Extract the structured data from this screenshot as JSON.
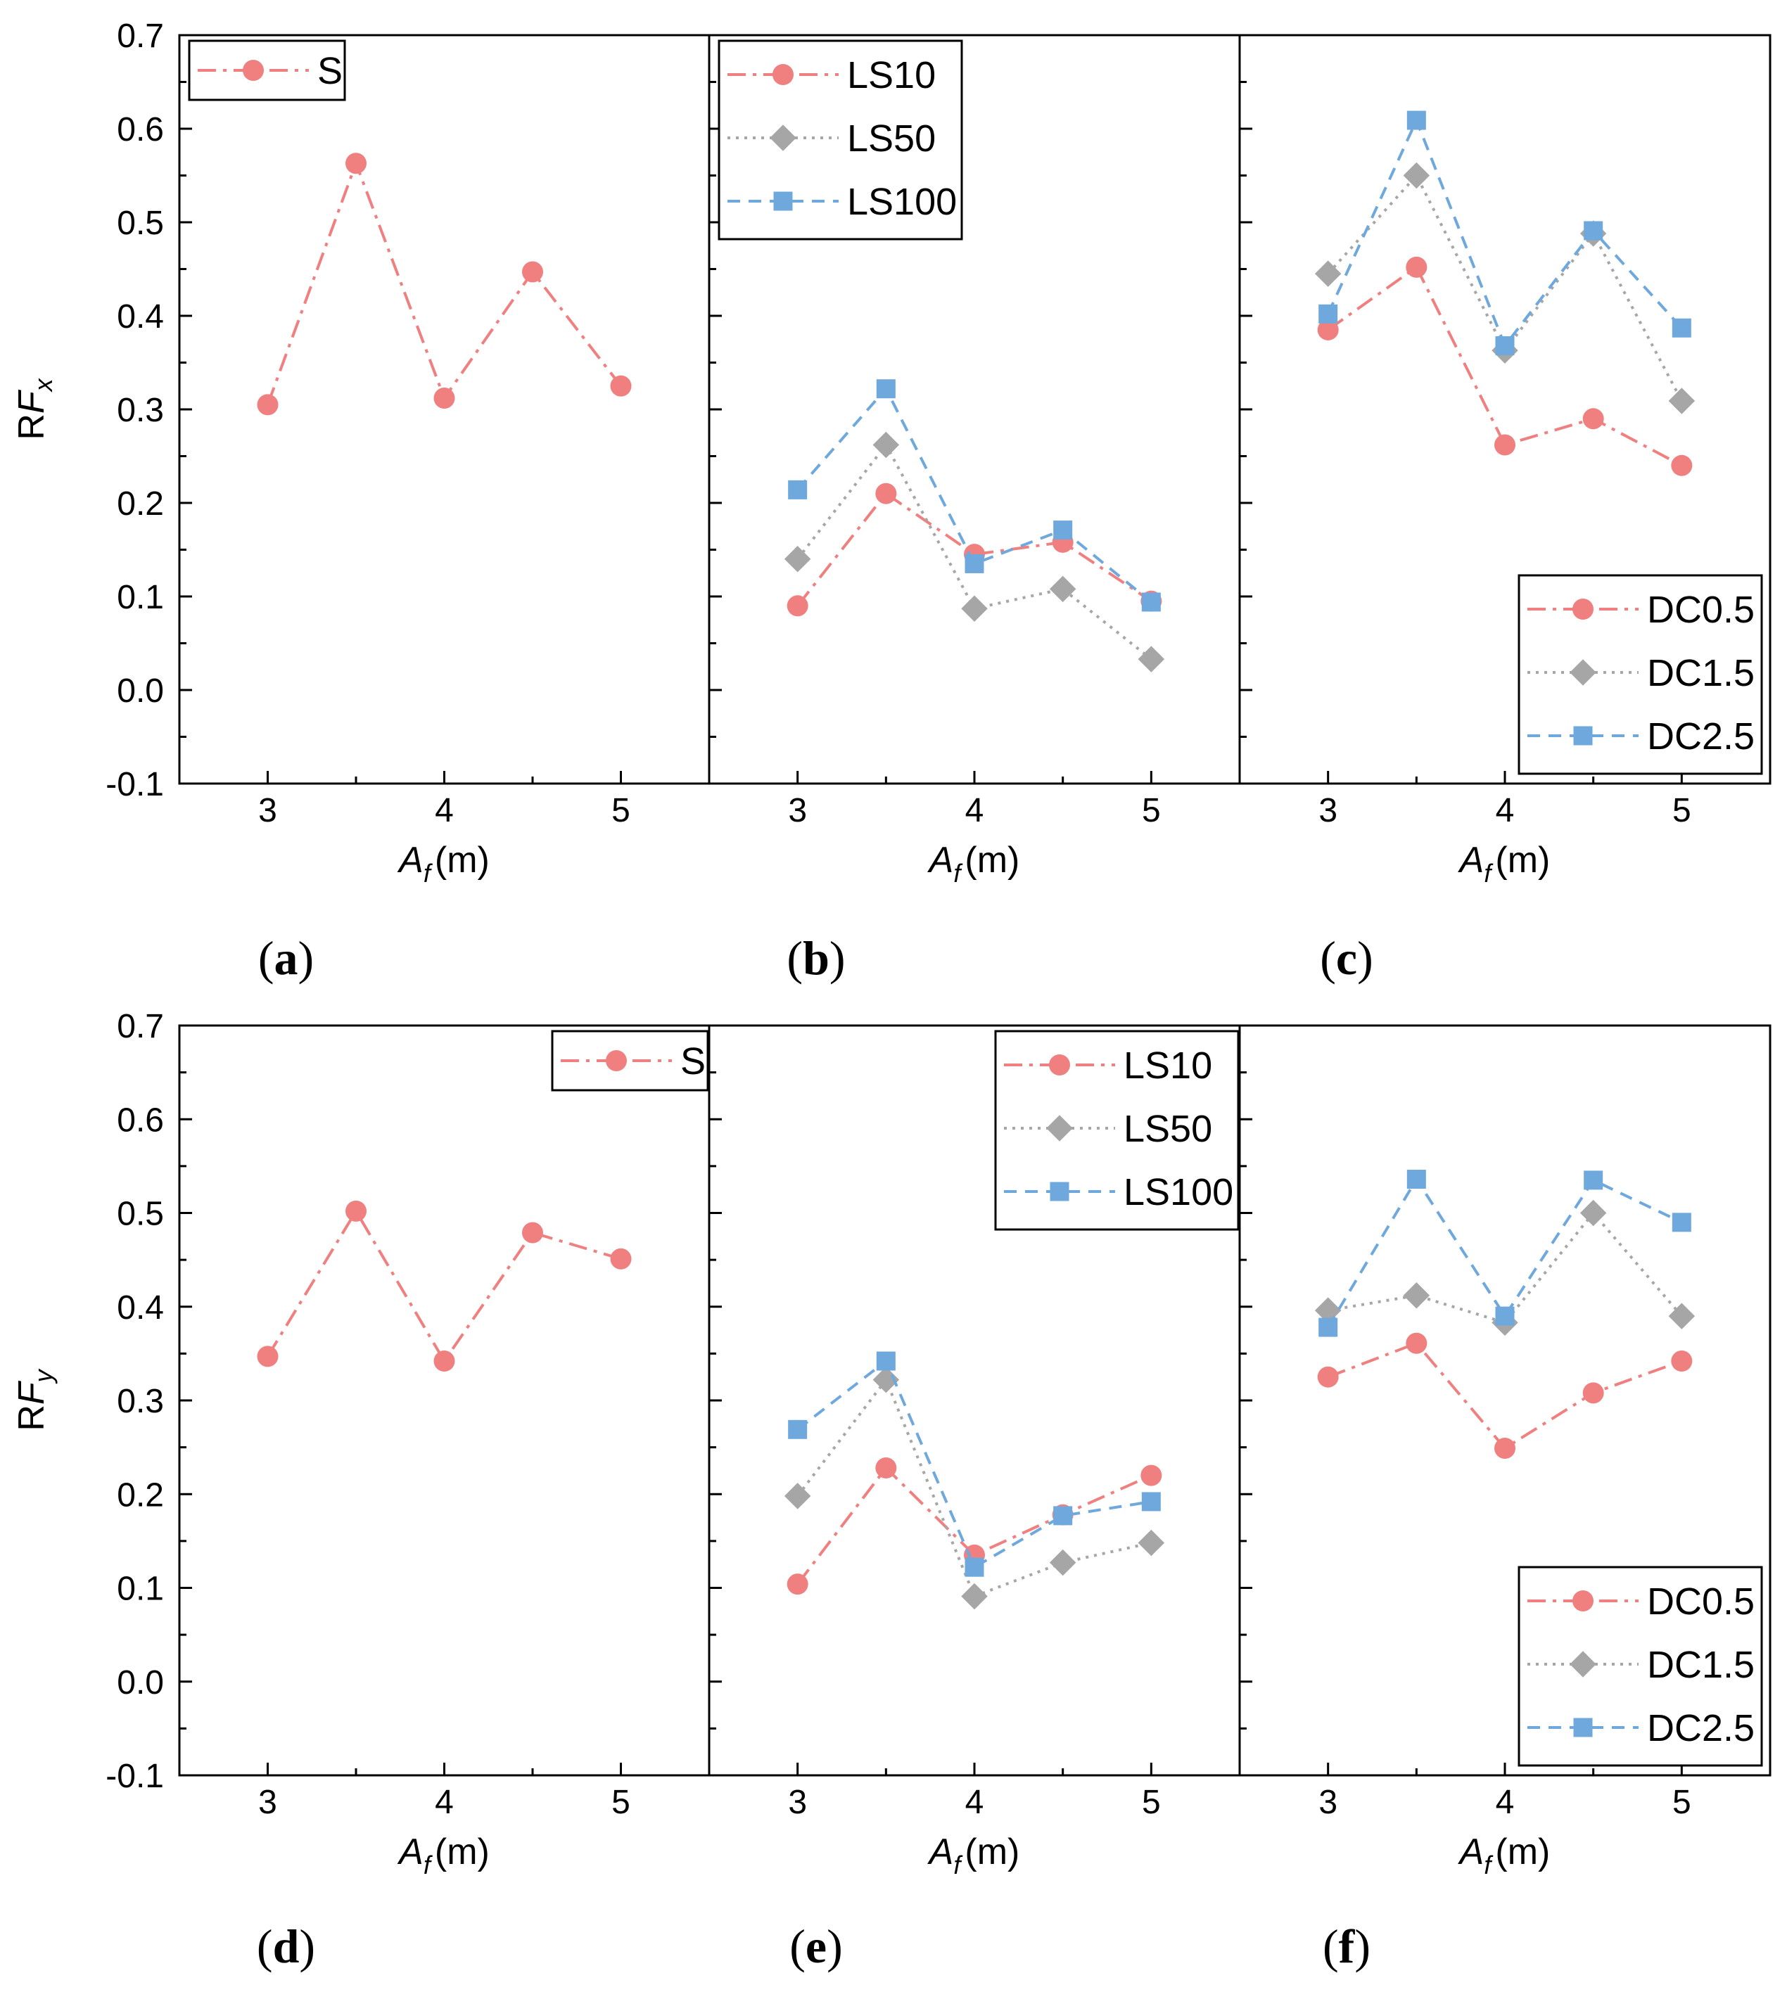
{
  "colors": {
    "red": "#f08080",
    "gray": "#a6a6a6",
    "blue": "#6fa8dc",
    "axis": "#000000"
  },
  "chart_data": [
    {
      "type": "line",
      "panel_label": "a",
      "xlabel_var": "A",
      "xlabel_sub": "f",
      "xlabel_unit": "(m)",
      "ylabel_main": "RF",
      "ylabel_sub": "x",
      "ylim": [
        -0.1,
        0.7
      ],
      "yticks": [
        "-0.1",
        "0.0",
        "0.1",
        "0.2",
        "0.3",
        "0.4",
        "0.5",
        "0.6",
        "0.7"
      ],
      "xticks": [
        "3",
        "4",
        "5"
      ],
      "legend_position": "top-left",
      "x": [
        3,
        3.5,
        4,
        4.5,
        5
      ],
      "series": [
        {
          "name": "S",
          "style": "dashdot",
          "marker": "circle",
          "color": "red",
          "values": [
            0.305,
            0.563,
            0.312,
            0.447,
            0.325
          ]
        }
      ]
    },
    {
      "type": "line",
      "panel_label": "b",
      "xlabel_var": "A",
      "xlabel_sub": "f",
      "xlabel_unit": "(m)",
      "xticks": [
        "3",
        "4",
        "5"
      ],
      "legend_position": "top-left",
      "x": [
        3,
        3.5,
        4,
        4.5,
        5
      ],
      "series": [
        {
          "name": "LS10",
          "style": "dashdot",
          "marker": "circle",
          "color": "red",
          "values": [
            0.09,
            0.21,
            0.145,
            0.158,
            0.095
          ]
        },
        {
          "name": "LS50",
          "style": "dotted",
          "marker": "diamond",
          "color": "gray",
          "values": [
            0.14,
            0.262,
            0.087,
            0.108,
            0.033
          ]
        },
        {
          "name": "LS100",
          "style": "dashed",
          "marker": "square",
          "color": "blue",
          "values": [
            0.214,
            0.322,
            0.135,
            0.171,
            0.094
          ]
        }
      ]
    },
    {
      "type": "line",
      "panel_label": "c",
      "xlabel_var": "A",
      "xlabel_sub": "f",
      "xlabel_unit": "(m)",
      "xticks": [
        "3",
        "4",
        "5"
      ],
      "legend_position": "bottom-right",
      "x": [
        3,
        3.5,
        4,
        4.5,
        5
      ],
      "series": [
        {
          "name": "DC0.5",
          "style": "dashdot",
          "marker": "circle",
          "color": "red",
          "values": [
            0.385,
            0.452,
            0.262,
            0.29,
            0.24
          ]
        },
        {
          "name": "DC1.5",
          "style": "dotted",
          "marker": "diamond",
          "color": "gray",
          "values": [
            0.445,
            0.55,
            0.363,
            0.488,
            0.309
          ]
        },
        {
          "name": "DC2.5",
          "style": "dashed",
          "marker": "square",
          "color": "blue",
          "values": [
            0.402,
            0.609,
            0.368,
            0.491,
            0.387
          ]
        }
      ]
    },
    {
      "type": "line",
      "panel_label": "d",
      "xlabel_var": "A",
      "xlabel_sub": "f",
      "xlabel_unit": "(m)",
      "ylabel_main": "RF",
      "ylabel_sub": "y",
      "ylim": [
        -0.1,
        0.7
      ],
      "yticks": [
        "-0.1",
        "0.0",
        "0.1",
        "0.2",
        "0.3",
        "0.4",
        "0.5",
        "0.6",
        "0.7"
      ],
      "xticks": [
        "3",
        "4",
        "5"
      ],
      "legend_position": "top-right",
      "x": [
        3,
        3.5,
        4,
        4.5,
        5
      ],
      "series": [
        {
          "name": "S",
          "style": "dashdot",
          "marker": "circle",
          "color": "red",
          "values": [
            0.347,
            0.502,
            0.342,
            0.479,
            0.451
          ]
        }
      ]
    },
    {
      "type": "line",
      "panel_label": "e",
      "xlabel_var": "A",
      "xlabel_sub": "f",
      "xlabel_unit": "(m)",
      "xticks": [
        "3",
        "4",
        "5"
      ],
      "legend_position": "top-right",
      "x": [
        3,
        3.5,
        4,
        4.5,
        5
      ],
      "series": [
        {
          "name": "LS10",
          "style": "dashdot",
          "marker": "circle",
          "color": "red",
          "values": [
            0.104,
            0.228,
            0.135,
            0.178,
            0.22
          ]
        },
        {
          "name": "LS50",
          "style": "dotted",
          "marker": "diamond",
          "color": "gray",
          "values": [
            0.198,
            0.322,
            0.091,
            0.127,
            0.148
          ]
        },
        {
          "name": "LS100",
          "style": "dashed",
          "marker": "square",
          "color": "blue",
          "values": [
            0.269,
            0.342,
            0.122,
            0.177,
            0.192
          ]
        }
      ]
    },
    {
      "type": "line",
      "panel_label": "f",
      "xlabel_var": "A",
      "xlabel_sub": "f",
      "xlabel_unit": "(m)",
      "xticks": [
        "3",
        "4",
        "5"
      ],
      "legend_position": "bottom-right",
      "x": [
        3,
        3.5,
        4,
        4.5,
        5
      ],
      "series": [
        {
          "name": "DC0.5",
          "style": "dashdot",
          "marker": "circle",
          "color": "red",
          "values": [
            0.325,
            0.361,
            0.249,
            0.308,
            0.342
          ]
        },
        {
          "name": "DC1.5",
          "style": "dotted",
          "marker": "diamond",
          "color": "gray",
          "values": [
            0.396,
            0.412,
            0.383,
            0.5,
            0.39
          ]
        },
        {
          "name": "DC2.5",
          "style": "dashed",
          "marker": "square",
          "color": "blue",
          "values": [
            0.378,
            0.536,
            0.39,
            0.535,
            0.49
          ]
        }
      ]
    }
  ]
}
